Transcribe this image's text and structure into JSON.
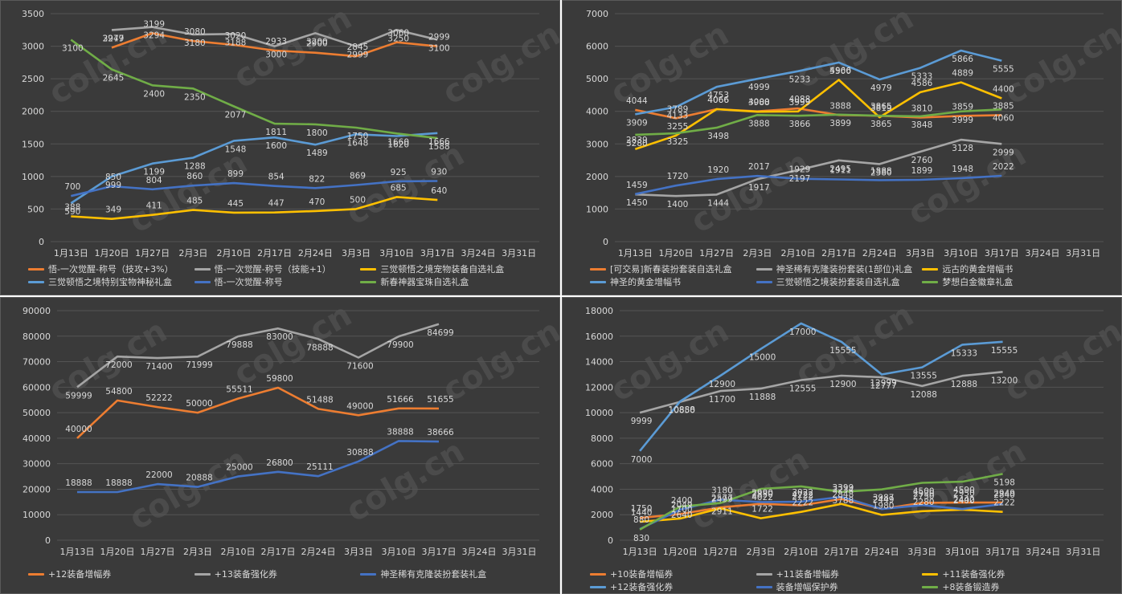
{
  "chart_data": [
    {
      "type": "line",
      "categories": [
        "1月13日",
        "1月20日",
        "1月27日",
        "2月3日",
        "2月10日",
        "2月17日",
        "2月24日",
        "3月3日",
        "3月10日",
        "3月17日",
        "3月24日",
        "3月31日"
      ],
      "ylim": [
        0,
        3500
      ],
      "yticks": [
        0,
        500,
        1000,
        1500,
        2000,
        2500,
        3000,
        3500
      ],
      "grid": true,
      "legend_position": "bottom",
      "series": [
        {
          "name": "悟-一次觉醒-称号（技攻+3%）",
          "color": "#ed7d31",
          "values": [
            null,
            2977,
            3199,
            3080,
            3020,
            2933,
            2900,
            2845,
            3060,
            2999,
            null,
            null
          ]
        },
        {
          "name": "悟-一次觉醒-称号（技能+1）",
          "color": "#a5a5a5",
          "values": [
            null,
            3249,
            3294,
            3180,
            3188,
            3000,
            3200,
            2999,
            3250,
            3100,
            null,
            null
          ]
        },
        {
          "name": "三觉顿悟之境宠物装备自选礼盒",
          "color": "#ffc000",
          "values": [
            388,
            349,
            411,
            485,
            445,
            447,
            470,
            500,
            685,
            640,
            null,
            null
          ]
        },
        {
          "name": "三觉顿悟之境特别宝物神秘礼盒",
          "color": "#5b9bd5",
          "values": [
            590,
            999,
            1199,
            1288,
            1548,
            1600,
            1489,
            1648,
            1620,
            1666,
            null,
            null
          ]
        },
        {
          "name": "悟-一次觉醒-称号",
          "color": "#4472c4",
          "values": [
            700,
            850,
            804,
            860,
            899,
            854,
            822,
            869,
            925,
            930,
            null,
            null
          ]
        },
        {
          "name": "新春神器宝珠自选礼盒",
          "color": "#70ad47",
          "values": [
            3100,
            2645,
            2400,
            2350,
            2077,
            1811,
            1800,
            1750,
            1660,
            1588,
            null,
            null
          ]
        }
      ]
    },
    {
      "type": "line",
      "categories": [
        "1月13日",
        "1月20日",
        "1月27日",
        "2月3日",
        "2月10日",
        "2月17日",
        "2月24日",
        "3月3日",
        "3月10日",
        "3月17日",
        "3月24日",
        "3月31日"
      ],
      "ylim": [
        0,
        7000
      ],
      "yticks": [
        0,
        1000,
        2000,
        3000,
        4000,
        5000,
        6000,
        7000
      ],
      "grid": true,
      "legend_position": "bottom",
      "series": [
        {
          "name": "[可交易]新春装扮套装自选礼盒",
          "color": "#ed7d31",
          "values": [
            4044,
            3789,
            4066,
            4000,
            4088,
            3888,
            3865,
            3810,
            3859,
            3885,
            null,
            null
          ]
        },
        {
          "name": "神圣稀有克隆装扮套装(1部位)礼盒",
          "color": "#a5a5a5",
          "values": [
            1450,
            1400,
            1444,
            1917,
            2197,
            2495,
            2380,
            2760,
            3128,
            2999,
            null,
            null
          ]
        },
        {
          "name": "远古的黄金增幅书",
          "color": "#ffc000",
          "values": [
            2839,
            3255,
            4066,
            3988,
            3999,
            4966,
            3819,
            4586,
            4889,
            4400,
            null,
            null
          ]
        },
        {
          "name": "神圣的黄金增幅书",
          "color": "#5b9bd5",
          "values": [
            3909,
            4133,
            4753,
            4999,
            5233,
            5500,
            4979,
            5333,
            5866,
            5555,
            null,
            null
          ]
        },
        {
          "name": "三觉顿悟之境装扮套装自选礼盒",
          "color": "#4472c4",
          "values": [
            1459,
            1720,
            1920,
            2017,
            1929,
            1911,
            1888,
            1899,
            1948,
            2022,
            null,
            null
          ]
        },
        {
          "name": "梦想白金徽章礼盒",
          "color": "#70ad47",
          "values": [
            3280,
            3325,
            3498,
            3888,
            3866,
            3899,
            3865,
            3848,
            3999,
            4060,
            null,
            null
          ]
        }
      ]
    },
    {
      "type": "line",
      "categories": [
        "1月13日",
        "1月20日",
        "1月27日",
        "2月3日",
        "2月10日",
        "2月17日",
        "2月24日",
        "3月3日",
        "3月10日",
        "3月17日",
        "3月24日",
        "3月31日"
      ],
      "ylim": [
        0,
        90000
      ],
      "yticks": [
        0,
        10000,
        20000,
        30000,
        40000,
        50000,
        60000,
        70000,
        80000,
        90000
      ],
      "grid": true,
      "legend_position": "bottom",
      "series": [
        {
          "name": "+12装备增幅券",
          "color": "#ed7d31",
          "values": [
            40000,
            54800,
            52222,
            50000,
            55511,
            59800,
            51488,
            49000,
            51666,
            51655,
            null,
            null
          ]
        },
        {
          "name": "+13装备强化券",
          "color": "#a5a5a5",
          "values": [
            59999,
            72000,
            71400,
            71999,
            79888,
            83000,
            78888,
            71600,
            79900,
            84699,
            null,
            null
          ]
        },
        {
          "name": "神圣稀有克隆装扮套装礼盒",
          "color": "#4472c4",
          "values": [
            18888,
            18888,
            22000,
            20888,
            25000,
            26800,
            25111,
            30888,
            38888,
            38666,
            null,
            null
          ]
        }
      ]
    },
    {
      "type": "line",
      "categories": [
        "1月13日",
        "1月20日",
        "1月27日",
        "2月3日",
        "2月10日",
        "2月17日",
        "2月24日",
        "3月3日",
        "3月10日",
        "3月17日",
        "3月24日",
        "3月31日"
      ],
      "ylim": [
        0,
        18000
      ],
      "yticks": [
        0,
        2000,
        4000,
        6000,
        8000,
        10000,
        12000,
        14000,
        16000,
        18000
      ],
      "grid": true,
      "legend_position": "bottom",
      "series": [
        {
          "name": "+10装备增幅券",
          "color": "#ed7d31",
          "values": [
            1750,
            2049,
            2577,
            2850,
            2733,
            3234,
            2449,
            2930,
            2950,
            2949,
            null,
            null
          ]
        },
        {
          "name": "+11装备增幅券",
          "color": "#a5a5a5",
          "values": [
            9999,
            10850,
            11700,
            11888,
            12555,
            12900,
            12777,
            12088,
            12888,
            13200,
            null,
            null
          ]
        },
        {
          "name": "+11装备强化券",
          "color": "#ffc000",
          "values": [
            1440,
            1700,
            2499,
            1722,
            2222,
            2848,
            1980,
            2280,
            2400,
            2222,
            null,
            null
          ]
        },
        {
          "name": "+12装备强化券",
          "color": "#5b9bd5",
          "values": [
            7000,
            10888,
            12900,
            15000,
            17000,
            15555,
            12999,
            13555,
            15333,
            15555,
            null,
            null
          ]
        },
        {
          "name": "装备增幅保护券",
          "color": "#4472c4",
          "values": [
            880,
            2400,
            3180,
            2990,
            3022,
            3399,
            2449,
            2750,
            2442,
            2840,
            null,
            null
          ]
        },
        {
          "name": "+8装备锻造券",
          "color": "#70ad47",
          "values": [
            830,
            2640,
            2911,
            4022,
            4222,
            3788,
            3987,
            4500,
            4590,
            5198,
            null,
            null
          ]
        }
      ]
    }
  ],
  "watermark": {
    "text": "colg.cn",
    "icon": "star-icon"
  }
}
